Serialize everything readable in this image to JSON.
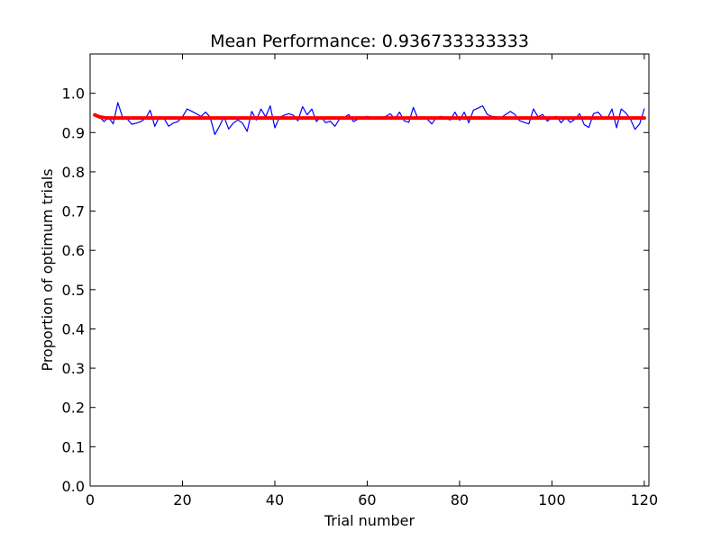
{
  "chart_data": {
    "type": "line",
    "title": "Mean Performance: 0.936733333333",
    "xlabel": "Trial number",
    "ylabel": "Proportion of optimum trials",
    "xlim": [
      0,
      121
    ],
    "ylim": [
      0.0,
      1.1
    ],
    "xticks": [
      0,
      20,
      40,
      60,
      80,
      100,
      120
    ],
    "yticks": [
      0.0,
      0.1,
      0.2,
      0.3,
      0.4,
      0.5,
      0.6,
      0.7,
      0.8,
      0.9,
      1.0
    ],
    "ytick_labels": [
      "0.0",
      "0.1",
      "0.2",
      "0.3",
      "0.4",
      "0.5",
      "0.6",
      "0.7",
      "0.8",
      "0.9",
      "1.0"
    ],
    "grid": false,
    "legend": "none",
    "series": [
      {
        "color": "#0000ff",
        "values": [
          0.945,
          0.94,
          0.928,
          0.938,
          0.922,
          0.976,
          0.94,
          0.935,
          0.921,
          0.924,
          0.928,
          0.936,
          0.957,
          0.916,
          0.94,
          0.936,
          0.916,
          0.924,
          0.928,
          0.94,
          0.96,
          0.954,
          0.948,
          0.941,
          0.952,
          0.939,
          0.895,
          0.916,
          0.94,
          0.909,
          0.924,
          0.932,
          0.924,
          0.903,
          0.954,
          0.932,
          0.96,
          0.94,
          0.968,
          0.912,
          0.938,
          0.944,
          0.948,
          0.944,
          0.93,
          0.966,
          0.945,
          0.96,
          0.928,
          0.94,
          0.925,
          0.929,
          0.916,
          0.934,
          0.938,
          0.946,
          0.928,
          0.934,
          0.938,
          0.941,
          0.938,
          0.934,
          0.936,
          0.941,
          0.948,
          0.934,
          0.952,
          0.93,
          0.926,
          0.964,
          0.935,
          0.94,
          0.934,
          0.922,
          0.938,
          0.941,
          0.936,
          0.932,
          0.952,
          0.931,
          0.952,
          0.925,
          0.957,
          0.962,
          0.968,
          0.946,
          0.941,
          0.94,
          0.938,
          0.946,
          0.954,
          0.946,
          0.93,
          0.926,
          0.922,
          0.96,
          0.94,
          0.946,
          0.929,
          0.938,
          0.941,
          0.925,
          0.938,
          0.926,
          0.934,
          0.948,
          0.92,
          0.913,
          0.948,
          0.952,
          0.938,
          0.935,
          0.96,
          0.912,
          0.96,
          0.95,
          0.934,
          0.908,
          0.922,
          0.96
        ]
      },
      {
        "color": "#ff0000",
        "values": [
          0.945,
          0.94,
          0.938,
          0.937,
          0.937,
          0.937,
          0.937,
          0.937,
          0.937,
          0.937,
          0.937,
          0.937,
          0.937,
          0.937,
          0.937,
          0.937,
          0.937,
          0.937,
          0.937,
          0.937,
          0.937,
          0.937,
          0.937,
          0.937,
          0.937,
          0.937,
          0.937,
          0.937,
          0.937,
          0.937,
          0.937,
          0.937,
          0.937,
          0.937,
          0.937,
          0.937,
          0.937,
          0.937,
          0.937,
          0.937,
          0.937,
          0.937,
          0.937,
          0.937,
          0.937,
          0.937,
          0.937,
          0.937,
          0.937,
          0.937,
          0.937,
          0.937,
          0.937,
          0.937,
          0.937,
          0.937,
          0.937,
          0.937,
          0.937,
          0.937,
          0.937,
          0.937,
          0.937,
          0.937,
          0.937,
          0.937,
          0.937,
          0.937,
          0.937,
          0.937,
          0.937,
          0.937,
          0.937,
          0.937,
          0.937,
          0.937,
          0.937,
          0.937,
          0.937,
          0.937,
          0.937,
          0.937,
          0.937,
          0.937,
          0.937,
          0.937,
          0.937,
          0.937,
          0.937,
          0.937,
          0.937,
          0.937,
          0.937,
          0.937,
          0.937,
          0.937,
          0.937,
          0.937,
          0.937,
          0.937,
          0.937,
          0.937,
          0.937,
          0.937,
          0.937,
          0.937,
          0.937,
          0.937,
          0.937,
          0.937,
          0.937,
          0.937,
          0.937,
          0.937,
          0.937,
          0.937,
          0.937,
          0.937,
          0.937,
          0.937
        ]
      }
    ]
  }
}
